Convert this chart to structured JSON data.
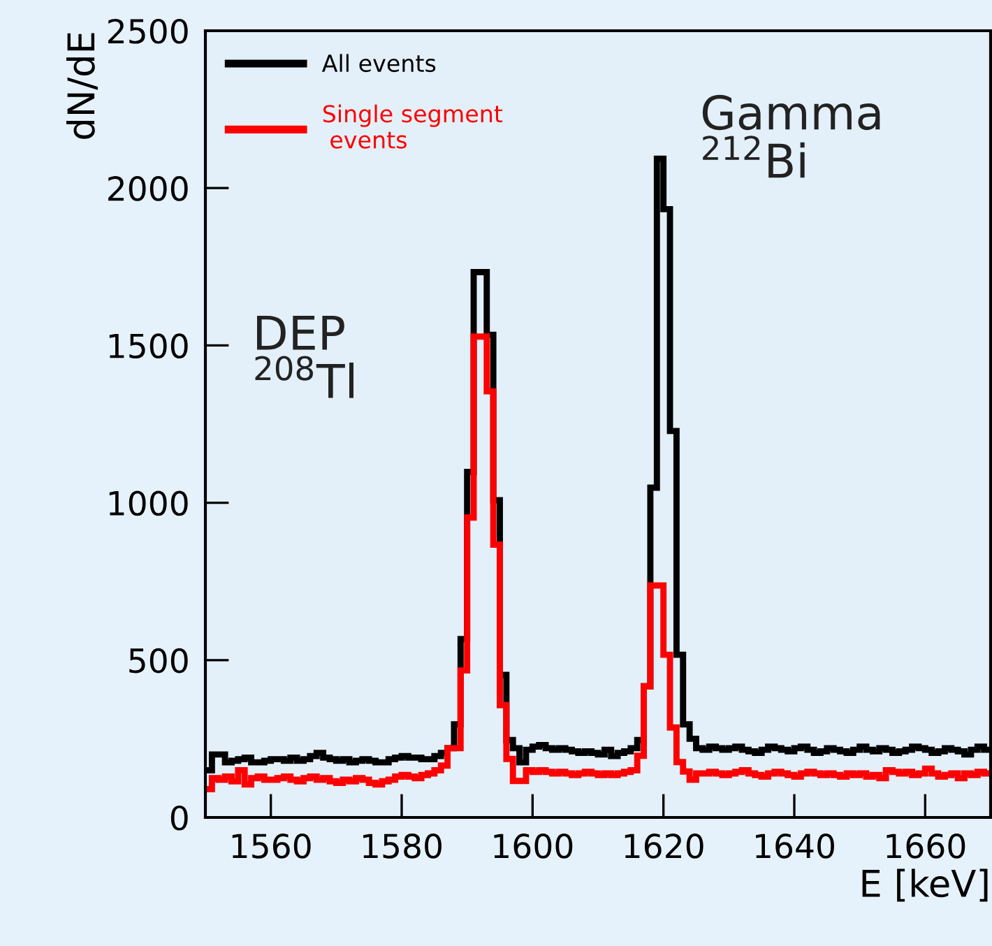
{
  "chart_data": {
    "type": "step",
    "xlabel": "E [keV]",
    "ylabel": "dN/dE",
    "x": [
      1550.5,
      1551.5,
      1552.5,
      1553.5,
      1554.5,
      1555.5,
      1556.5,
      1557.5,
      1558.5,
      1559.5,
      1560.5,
      1561.5,
      1562.5,
      1563.5,
      1564.5,
      1565.5,
      1566.5,
      1567.5,
      1568.5,
      1569.5,
      1570.5,
      1571.5,
      1572.5,
      1573.5,
      1574.5,
      1575.5,
      1576.5,
      1577.5,
      1578.5,
      1579.5,
      1580.5,
      1581.5,
      1582.5,
      1583.5,
      1584.5,
      1585.5,
      1586.5,
      1587.5,
      1588.5,
      1589.5,
      1590.5,
      1591.5,
      1592.5,
      1593.5,
      1594.5,
      1595.5,
      1596.5,
      1597.5,
      1598.5,
      1599.5,
      1600.5,
      1601.5,
      1602.5,
      1603.5,
      1604.5,
      1605.5,
      1606.5,
      1607.5,
      1608.5,
      1609.5,
      1610.5,
      1611.5,
      1612.5,
      1613.5,
      1614.5,
      1615.5,
      1616.5,
      1617.5,
      1618.5,
      1619.5,
      1620.5,
      1621.5,
      1622.5,
      1623.5,
      1624.5,
      1625.5,
      1626.5,
      1627.5,
      1628.5,
      1629.5,
      1630.5,
      1631.5,
      1632.5,
      1633.5,
      1634.5,
      1635.5,
      1636.5,
      1637.5,
      1638.5,
      1639.5,
      1640.5,
      1641.5,
      1642.5,
      1643.5,
      1644.5,
      1645.5,
      1646.5,
      1647.5,
      1648.5,
      1649.5,
      1650.5,
      1651.5,
      1652.5,
      1653.5,
      1654.5,
      1655.5,
      1656.5,
      1657.5,
      1658.5,
      1659.5,
      1660.5,
      1661.5,
      1662.5,
      1663.5,
      1664.5,
      1665.5,
      1666.5,
      1667.5,
      1668.5,
      1669.5
    ],
    "series": [
      {
        "name": "All events",
        "color": "#000000",
        "values": [
          150,
          200,
          200,
          175,
          180,
          185,
          190,
          175,
          175,
          180,
          185,
          185,
          180,
          190,
          180,
          185,
          195,
          205,
          190,
          185,
          180,
          185,
          175,
          180,
          185,
          180,
          175,
          175,
          185,
          190,
          195,
          190,
          190,
          185,
          185,
          195,
          205,
          220,
          296,
          567,
          1098,
          1733,
          1733,
          1534,
          1008,
          453,
          246,
          220,
          175,
          215,
          225,
          230,
          220,
          215,
          220,
          215,
          210,
          205,
          210,
          205,
          200,
          215,
          195,
          205,
          210,
          220,
          246,
          417,
          1048,
          2093,
          1933,
          1228,
          517,
          296,
          250,
          220,
          215,
          225,
          220,
          215,
          220,
          225,
          215,
          210,
          205,
          215,
          225,
          220,
          215,
          210,
          220,
          225,
          215,
          205,
          210,
          220,
          215,
          210,
          205,
          215,
          225,
          215,
          210,
          220,
          215,
          205,
          210,
          215,
          225,
          220,
          215,
          205,
          210,
          220,
          215,
          210,
          200,
          215,
          225,
          215
        ]
      },
      {
        "name": "Single segment\n events",
        "color": "#ff0000",
        "values": [
          90,
          125,
          120,
          130,
          115,
          150,
          105,
          125,
          130,
          120,
          120,
          125,
          130,
          120,
          115,
          125,
          130,
          120,
          125,
          115,
          110,
          120,
          115,
          125,
          120,
          110,
          105,
          115,
          120,
          130,
          135,
          130,
          125,
          135,
          140,
          150,
          165,
          220,
          220,
          467,
          953,
          1528,
          1528,
          1354,
          867,
          357,
          186,
          116,
          116,
          150,
          145,
          150,
          145,
          140,
          145,
          140,
          135,
          140,
          145,
          140,
          135,
          140,
          135,
          140,
          145,
          150,
          196,
          417,
          737,
          737,
          517,
          286,
          176,
          146,
          120,
          140,
          140,
          145,
          140,
          135,
          140,
          145,
          150,
          140,
          135,
          130,
          140,
          145,
          140,
          135,
          130,
          140,
          145,
          140,
          135,
          140,
          135,
          130,
          140,
          135,
          140,
          130,
          135,
          125,
          150,
          145,
          140,
          145,
          135,
          140,
          155,
          140,
          130,
          135,
          140,
          125,
          140,
          135,
          145,
          140
        ]
      }
    ],
    "xlim": [
      1550,
      1670
    ],
    "xticks": [
      1560,
      1580,
      1600,
      1620,
      1640,
      1660
    ],
    "ylim": [
      0,
      2500
    ],
    "yticks": [
      0,
      500,
      1000,
      1500,
      2000,
      2500
    ],
    "annotations": [
      "DEP\n$^{208}$Tl",
      "Gamma\n$^{212}$Bi"
    ],
    "legend": "top left",
    "grid": false
  }
}
